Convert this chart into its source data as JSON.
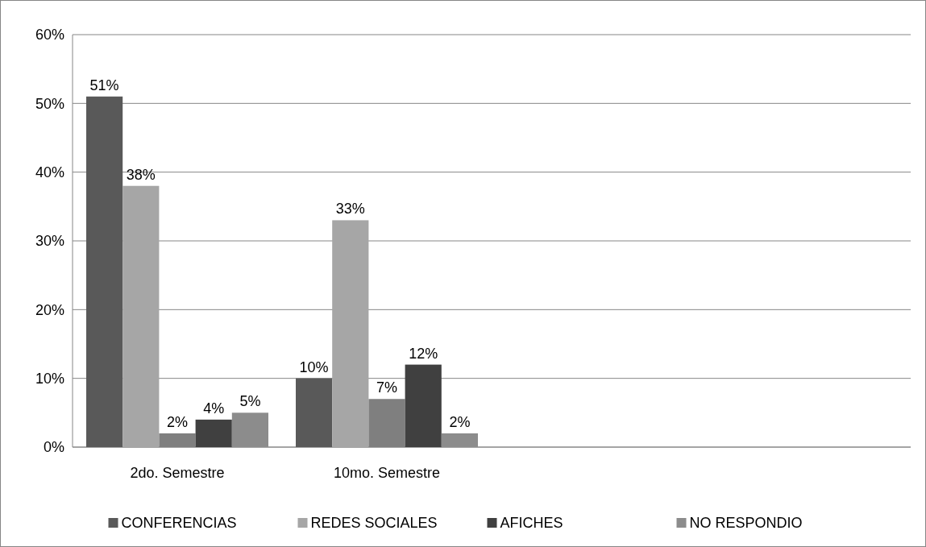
{
  "chart_data": {
    "type": "bar",
    "categories": [
      "2do. Semestre",
      "10mo. Semestre",
      null,
      null
    ],
    "series": [
      {
        "name": "CONFERENCIAS",
        "color": "#595959",
        "values": [
          51,
          10,
          null,
          null
        ]
      },
      {
        "name": "REDES SOCIALES",
        "color": "#a6a6a6",
        "values": [
          38,
          33,
          null,
          null
        ]
      },
      {
        "color": "#7f7f7f",
        "values": [
          2,
          7,
          null,
          null
        ]
      },
      {
        "name": "AFICHES",
        "color": "#404040",
        "values": [
          4,
          12,
          null,
          null
        ]
      },
      {
        "name": "NO RESPONDIO",
        "color": "#8c8c8c",
        "values": [
          5,
          2,
          null,
          null
        ]
      }
    ],
    "ylim": [
      0,
      60
    ],
    "yticks": [
      {
        "value": 0,
        "label": "0%"
      },
      {
        "value": 10,
        "label": "10%"
      },
      {
        "value": 20,
        "label": "20%"
      },
      {
        "value": 30,
        "label": "30%"
      },
      {
        "value": 40,
        "label": "40%"
      },
      {
        "value": 50,
        "label": "50%"
      },
      {
        "value": 60,
        "label": "60%"
      }
    ],
    "value_labels": [
      [
        "51%",
        "10%",
        null,
        null
      ],
      [
        "38%",
        "33%",
        null,
        null
      ],
      [
        "2%",
        "7%",
        null,
        null
      ],
      [
        "4%",
        "12%",
        null,
        null
      ],
      [
        "5%",
        "2%",
        null,
        null
      ]
    ],
    "grid": "y",
    "legend": "bottom"
  }
}
